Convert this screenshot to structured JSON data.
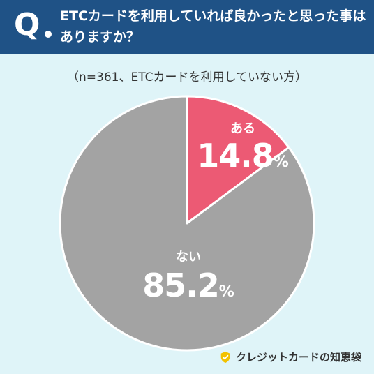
{
  "header": {
    "q_mark": "Q",
    "question": "ETCカードを利用していれば良かったと思った事はありますか？"
  },
  "subtitle": "（n=361、ETCカードを利用していない方）",
  "brand": {
    "name": "クレジットカードの知恵袋",
    "icon": "check-badge-icon"
  },
  "colors": {
    "yes": "#ec5a74",
    "no": "#a3a3a3",
    "header": "#1f5286",
    "background": "#dff4f8"
  },
  "chart_data": {
    "type": "pie",
    "categories": [
      "ある",
      "ない"
    ],
    "values": [
      14.8,
      85.2
    ],
    "value_labels": [
      "14.8",
      "85.2"
    ],
    "unit": "%",
    "title": "ETCカードを利用していれば良かったと思った事はありますか？",
    "subtitle": "（n=361、ETCカードを利用していない方）"
  }
}
